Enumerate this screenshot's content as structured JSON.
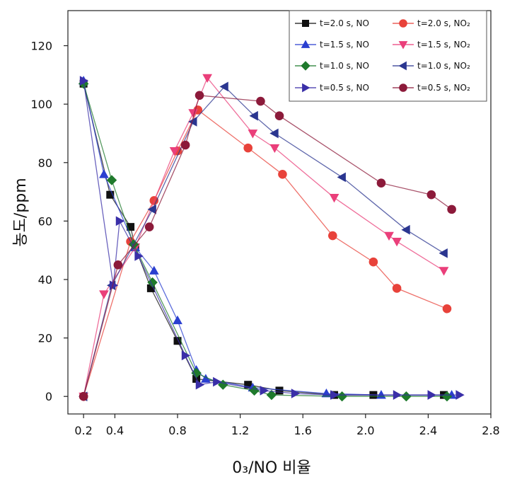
{
  "chart_data": {
    "type": "line",
    "title": "",
    "xlabel": "0₃/NO 비율",
    "ylabel": "농도/ppm",
    "xlim": [
      0.1,
      2.8
    ],
    "ylim": [
      -6,
      132
    ],
    "x_ticks": [
      "0.2",
      "0.4",
      "0.8",
      "1.2",
      "1.6",
      "2.0",
      "2.4",
      "2.8"
    ],
    "y_ticks": [
      "0",
      "20",
      "40",
      "60",
      "80",
      "100",
      "120"
    ],
    "legend_position": "top-right",
    "series": [
      {
        "name": "t=2.0 s, NO",
        "color": "#111111",
        "marker": "square",
        "x": [
          0.2,
          0.37,
          0.5,
          0.53,
          0.63,
          0.8,
          0.92,
          1.25,
          1.45,
          1.8,
          2.05,
          2.5
        ],
        "y": [
          107,
          69,
          58,
          51,
          37,
          19,
          6,
          4,
          2,
          0.5,
          0.5,
          0.5
        ]
      },
      {
        "name": "t=2.0 s, NO₂",
        "color": "#e8423a",
        "marker": "circle",
        "x": [
          0.2,
          0.5,
          0.65,
          0.8,
          0.93,
          1.25,
          1.47,
          1.79,
          2.05,
          2.2,
          2.52
        ],
        "y": [
          0,
          53,
          67,
          84,
          98,
          85,
          76,
          55,
          46,
          37,
          30
        ]
      },
      {
        "name": "t=1.5 s, NO",
        "color": "#2a3fd0",
        "marker": "triangle-up",
        "x": [
          0.2,
          0.33,
          0.53,
          0.65,
          0.8,
          0.92,
          0.98,
          1.28,
          1.75,
          2.1,
          2.55
        ],
        "y": [
          108,
          76,
          51,
          43,
          26,
          9,
          6,
          3,
          1,
          0.5,
          0.5
        ]
      },
      {
        "name": "t=1.5 s, NO₂",
        "color": "#ea3f7a",
        "marker": "triangle-down",
        "x": [
          0.2,
          0.33,
          0.53,
          0.78,
          0.9,
          0.99,
          1.28,
          1.42,
          1.8,
          2.15,
          2.2,
          2.5
        ],
        "y": [
          0,
          35,
          51,
          84,
          97,
          109,
          90,
          85,
          68,
          55,
          53,
          43
        ]
      },
      {
        "name": "t=1.0 s, NO",
        "color": "#1f7a2c",
        "marker": "diamond",
        "x": [
          0.2,
          0.38,
          0.52,
          0.64,
          0.92,
          1.09,
          1.29,
          1.4,
          1.85,
          2.26,
          2.52
        ],
        "y": [
          107,
          74,
          52,
          39,
          8,
          4,
          2,
          0.5,
          0,
          0,
          0
        ]
      },
      {
        "name": "t=1.0 s, NO₂",
        "color": "#2b3690",
        "marker": "triangle-left",
        "x": [
          0.2,
          0.38,
          0.64,
          0.9,
          1.1,
          1.29,
          1.42,
          1.85,
          2.26,
          2.5
        ],
        "y": [
          0,
          38,
          64,
          94,
          106,
          96,
          90,
          75,
          57,
          49
        ]
      },
      {
        "name": "t=0.5 s, NO",
        "color": "#3a2fa8",
        "marker": "triangle-right",
        "x": [
          0.2,
          0.39,
          0.43,
          0.55,
          0.85,
          0.94,
          1.05,
          1.35,
          1.55,
          1.8,
          2.2,
          2.42,
          2.6
        ],
        "y": [
          108,
          38,
          60,
          48,
          14,
          4,
          5,
          2,
          1,
          0.5,
          0.5,
          0.5,
          0.5
        ]
      },
      {
        "name": "t=0.5 s, NO₂",
        "color": "#8c1a3a",
        "marker": "circle",
        "x": [
          0.2,
          0.42,
          0.62,
          0.85,
          0.94,
          1.33,
          1.45,
          2.1,
          2.42,
          2.55
        ],
        "y": [
          0,
          45,
          58,
          86,
          103,
          101,
          96,
          73,
          69,
          64
        ]
      }
    ]
  }
}
